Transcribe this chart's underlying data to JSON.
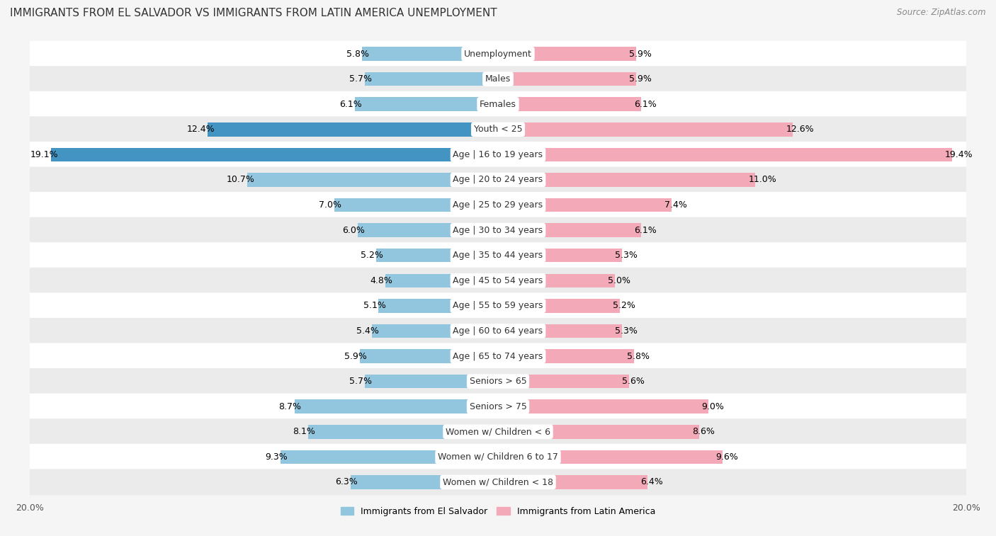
{
  "title": "IMMIGRANTS FROM EL SALVADOR VS IMMIGRANTS FROM LATIN AMERICA UNEMPLOYMENT",
  "source": "Source: ZipAtlas.com",
  "categories": [
    "Unemployment",
    "Males",
    "Females",
    "Youth < 25",
    "Age | 16 to 19 years",
    "Age | 20 to 24 years",
    "Age | 25 to 29 years",
    "Age | 30 to 34 years",
    "Age | 35 to 44 years",
    "Age | 45 to 54 years",
    "Age | 55 to 59 years",
    "Age | 60 to 64 years",
    "Age | 65 to 74 years",
    "Seniors > 65",
    "Seniors > 75",
    "Women w/ Children < 6",
    "Women w/ Children 6 to 17",
    "Women w/ Children < 18"
  ],
  "el_salvador": [
    5.8,
    5.7,
    6.1,
    12.4,
    19.1,
    10.7,
    7.0,
    6.0,
    5.2,
    4.8,
    5.1,
    5.4,
    5.9,
    5.7,
    8.7,
    8.1,
    9.3,
    6.3
  ],
  "latin_america": [
    5.9,
    5.9,
    6.1,
    12.6,
    19.4,
    11.0,
    7.4,
    6.1,
    5.3,
    5.0,
    5.2,
    5.3,
    5.8,
    5.6,
    9.0,
    8.6,
    9.6,
    6.4
  ],
  "el_salvador_color": "#92c5de",
  "latin_america_color": "#f4a9b8",
  "highlight_rows": [
    3,
    4
  ],
  "highlight_el_salvador_color": "#4393c3",
  "highlight_latin_america_color": "#f4a9b8",
  "bar_height": 0.55,
  "background_color": "#f5f5f5",
  "row_bg_white": "#ffffff",
  "row_bg_gray": "#ebebeb",
  "xlim": 20.0,
  "legend_label_el_salvador": "Immigrants from El Salvador",
  "legend_label_latin_america": "Immigrants from Latin America",
  "title_fontsize": 11,
  "label_fontsize": 9,
  "value_fontsize": 9
}
